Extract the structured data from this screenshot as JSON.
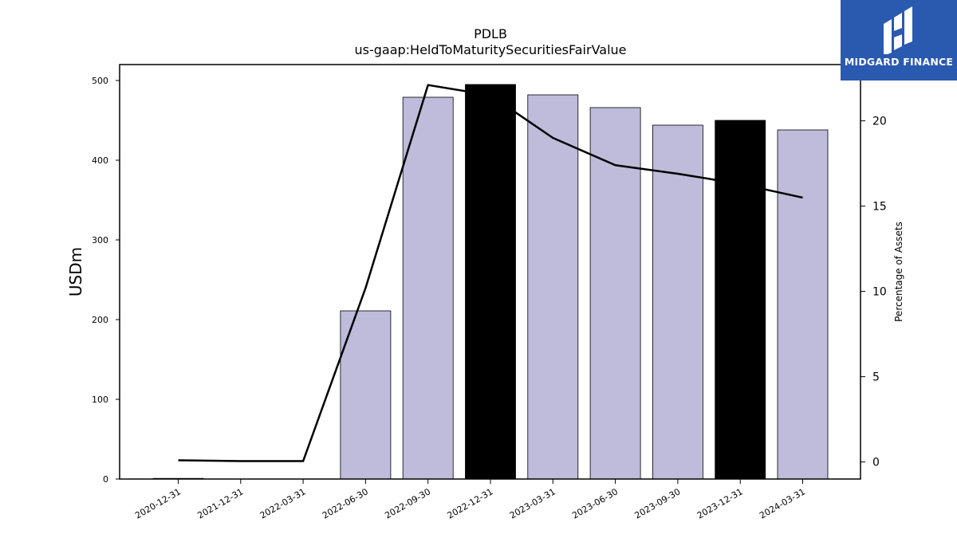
{
  "logo": {
    "text": "MIDGARD FINANCE"
  },
  "chart_data": {
    "type": "bar",
    "title": "PDLB",
    "subtitle": "us-gaap:HeldToMaturitySecuritiesFairValue",
    "ylabel": "USDm",
    "y2label": "Percentage of Assets",
    "categories": [
      "2020-12-31",
      "2021-12-31",
      "2022-03-31",
      "2022-06-30",
      "2022-09-30",
      "2022-12-31",
      "2023-03-31",
      "2023-06-30",
      "2023-09-30",
      "2023-12-31",
      "2024-03-31"
    ],
    "series": [
      {
        "type": "bar",
        "values": [
          0.8,
          0,
          0,
          211,
          479,
          495,
          482,
          466,
          444,
          450,
          438
        ],
        "colors": [
          "#bebbdb",
          "#bebbdb",
          "#bebbdb",
          "#bebbdb",
          "#bebbdb",
          "#000000",
          "#bebbdb",
          "#bebbdb",
          "#bebbdb",
          "#000000",
          "#bebbdb"
        ]
      },
      {
        "type": "line",
        "axis": "right",
        "values": [
          0.1,
          0.05,
          0.05,
          10.2,
          22.1,
          21.5,
          19.0,
          17.4,
          16.9,
          16.3,
          15.5
        ],
        "color": "#000000"
      }
    ],
    "ylim": [
      0,
      520
    ],
    "yticks": [
      0,
      100,
      200,
      300,
      400,
      500
    ],
    "y2lim": [
      -1,
      23.3
    ],
    "y2ticks": [
      0,
      5,
      10,
      15,
      20
    ],
    "grid": false,
    "legend": "none"
  }
}
